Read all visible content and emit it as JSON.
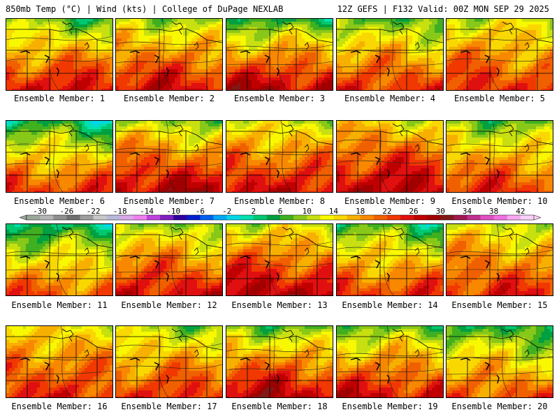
{
  "header": {
    "left": "850mb Temp (°C) | Wind (kts) | College of DuPage NEXLAB",
    "right": "12Z GEFS | F132 Valid: 00Z MON SEP 29 2025"
  },
  "caption_prefix": "Ensemble Member:",
  "members": [
    {
      "label": "Ensemble Member: 1",
      "north_temp": 8,
      "south_temp": 26
    },
    {
      "label": "Ensemble Member: 2",
      "north_temp": 10,
      "south_temp": 26
    },
    {
      "label": "Ensemble Member: 3",
      "north_temp": 6,
      "south_temp": 28
    },
    {
      "label": "Ensemble Member: 4",
      "north_temp": 8,
      "south_temp": 24
    },
    {
      "label": "Ensemble Member: 5",
      "north_temp": 12,
      "south_temp": 24
    },
    {
      "label": "Ensemble Member: 6",
      "north_temp": 4,
      "south_temp": 24
    },
    {
      "label": "Ensemble Member: 7",
      "north_temp": 10,
      "south_temp": 28
    },
    {
      "label": "Ensemble Member: 8",
      "north_temp": 12,
      "south_temp": 26
    },
    {
      "label": "Ensemble Member: 9",
      "north_temp": 14,
      "south_temp": 28
    },
    {
      "label": "Ensemble Member: 10",
      "north_temp": 8,
      "south_temp": 24
    },
    {
      "label": "Ensemble Member: 11",
      "north_temp": 4,
      "south_temp": 22
    },
    {
      "label": "Ensemble Member: 12",
      "north_temp": 10,
      "south_temp": 26
    },
    {
      "label": "Ensemble Member: 13",
      "north_temp": 12,
      "south_temp": 28
    },
    {
      "label": "Ensemble Member: 14",
      "north_temp": 6,
      "south_temp": 24
    },
    {
      "label": "Ensemble Member: 15",
      "north_temp": 12,
      "south_temp": 24
    },
    {
      "label": "Ensemble Member: 16",
      "north_temp": 14,
      "south_temp": 24
    },
    {
      "label": "Ensemble Member: 17",
      "north_temp": 10,
      "south_temp": 24
    },
    {
      "label": "Ensemble Member: 18",
      "north_temp": 8,
      "south_temp": 28
    },
    {
      "label": "Ensemble Member: 19",
      "north_temp": 8,
      "south_temp": 26
    },
    {
      "label": "Ensemble Member: 20",
      "north_temp": 6,
      "south_temp": 22
    }
  ],
  "colorbar": {
    "unit": "°C",
    "min": -32,
    "max": 44,
    "step": 2,
    "tick_labels": [
      "-30",
      "-26",
      "-22",
      "-18",
      "-14",
      "-10",
      "-6",
      "-2",
      "2",
      "6",
      "10",
      "14",
      "18",
      "22",
      "26",
      "30",
      "34",
      "38",
      "42"
    ],
    "colors": [
      "#9aa89a",
      "#b5b5b5",
      "#8f8f8f",
      "#707070",
      "#9e9e9e",
      "#c8c8c8",
      "#b8b8d8",
      "#d8a8e8",
      "#f080f0",
      "#c040e0",
      "#8020c0",
      "#3000a0",
      "#0020d0",
      "#0060f0",
      "#00a8f8",
      "#00d8e8",
      "#00e0b0",
      "#00c870",
      "#00a040",
      "#40b020",
      "#88c818",
      "#c8e010",
      "#f8f800",
      "#f8d800",
      "#f8b000",
      "#f88800",
      "#f06000",
      "#f03800",
      "#e01010",
      "#c00000",
      "#a00000",
      "#801818",
      "#a01850",
      "#c03090",
      "#e050c0",
      "#f070e0",
      "#f8a8f0",
      "#f8d0f8"
    ]
  }
}
